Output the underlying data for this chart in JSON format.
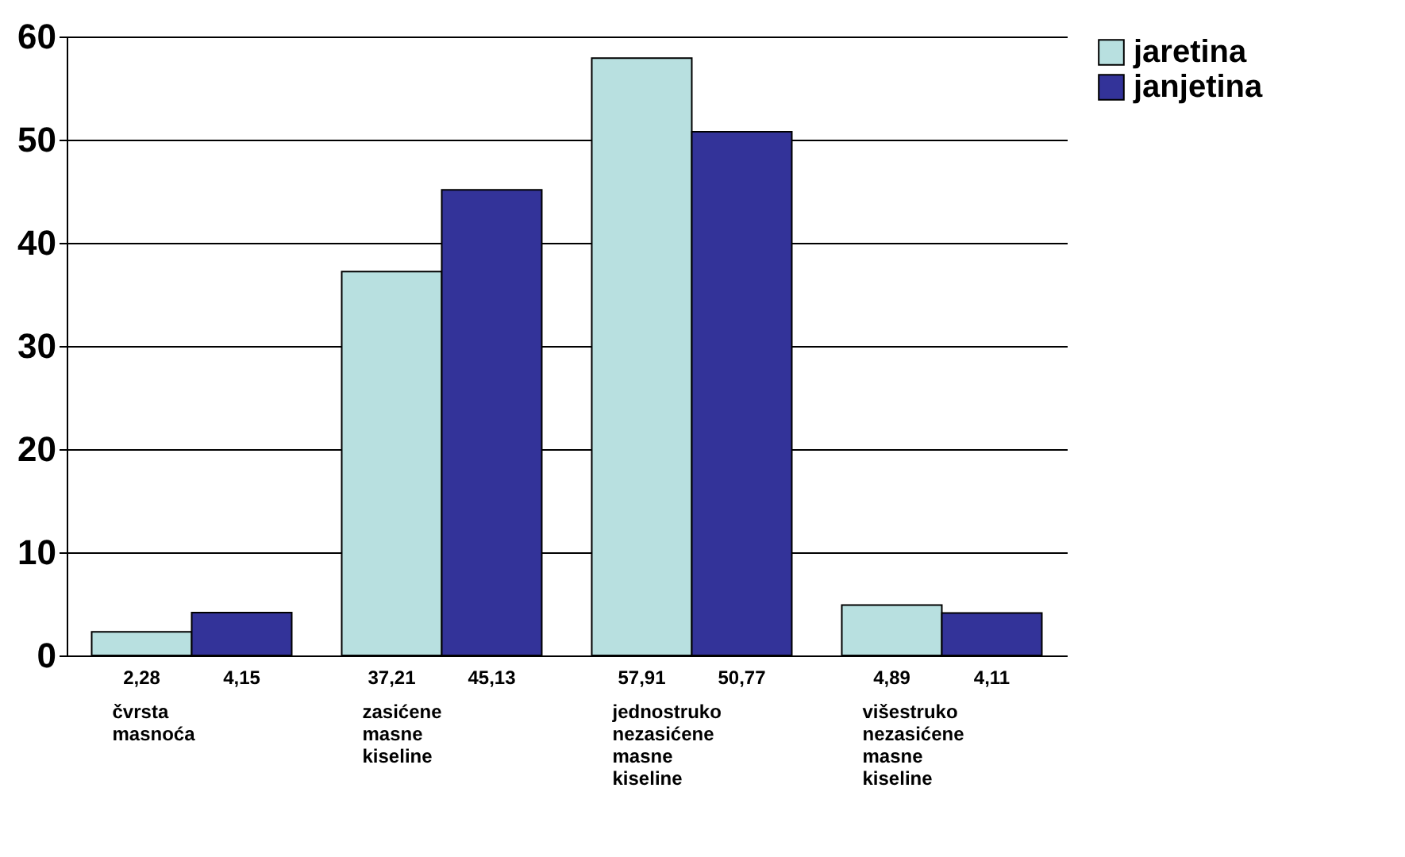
{
  "chart_data": {
    "type": "bar",
    "categories": [
      "čvrsta masnoća",
      "zasićene masne kiseline",
      "jednostruko nezasićene masne kiseline",
      "višestruko nezasićene masne kiseline"
    ],
    "series": [
      {
        "name": "jaretina",
        "color": "#b8e0e0",
        "values": [
          2.28,
          37.21,
          57.91,
          4.89
        ],
        "value_labels": [
          "2,28",
          "37,21",
          "57,91",
          "4,89"
        ]
      },
      {
        "name": "janjetina",
        "color": "#333399",
        "values": [
          4.15,
          45.13,
          50.77,
          4.11
        ],
        "value_labels": [
          "4,15",
          "45,13",
          "50,77",
          "4,11"
        ]
      }
    ],
    "ylim": [
      0,
      60
    ],
    "yticks": [
      0,
      10,
      20,
      30,
      40,
      50,
      60
    ],
    "grid": "y",
    "legend": "right"
  }
}
